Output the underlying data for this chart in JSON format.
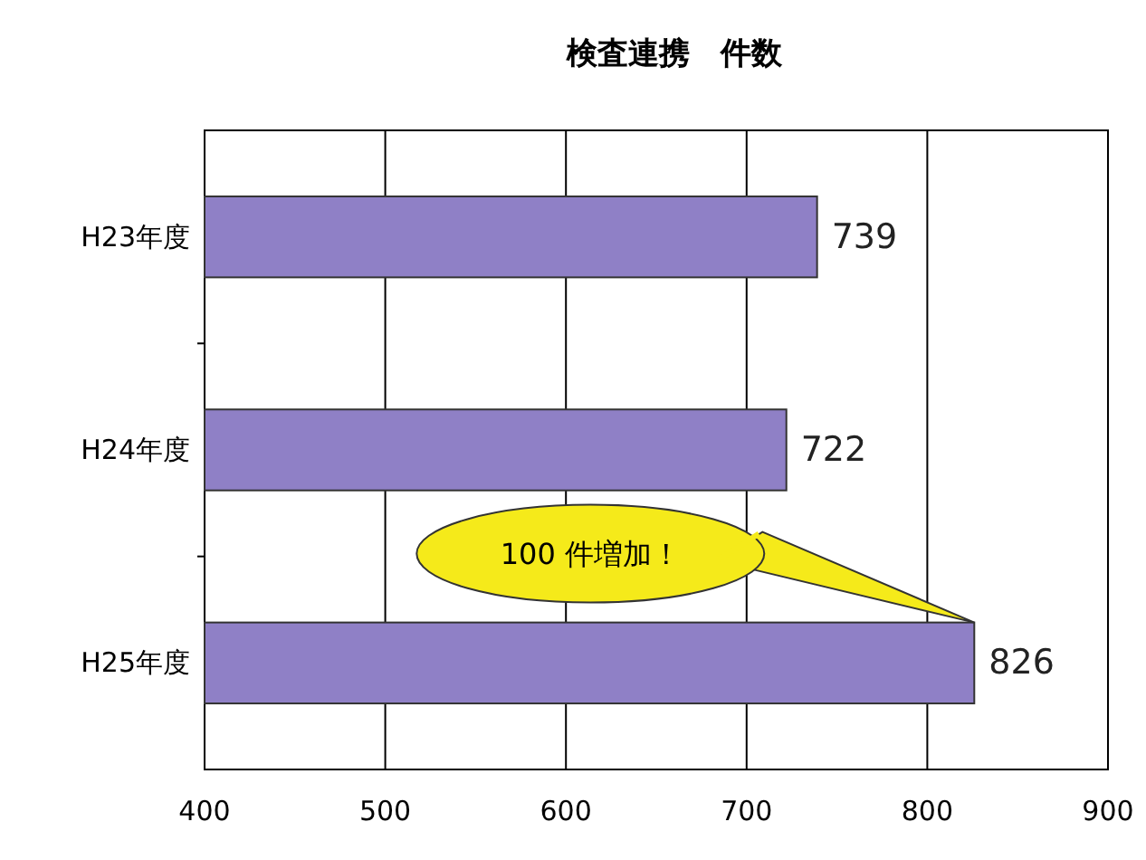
{
  "chart_data": {
    "type": "bar",
    "orientation": "horizontal",
    "title": "検査連携　件数",
    "categories": [
      "H23年度",
      "H24年度",
      "H25年度"
    ],
    "values": [
      739,
      722,
      826
    ],
    "color": "#8f80c6",
    "xlim": [
      400,
      900
    ],
    "xticks": [
      400,
      500,
      600,
      700,
      800,
      900
    ],
    "grid": "x",
    "data_labels": true,
    "annotations": [
      "100 件増加！"
    ]
  }
}
